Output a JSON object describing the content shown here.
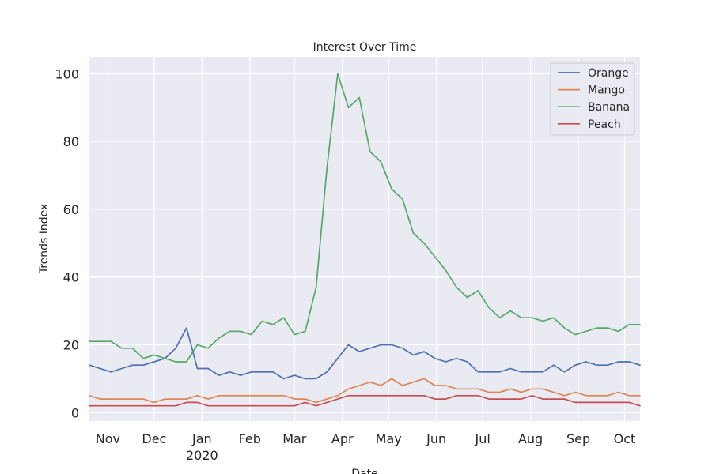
{
  "chart_data": {
    "type": "line",
    "title": "Interest Over Time",
    "xlabel": "Date",
    "ylabel": "Trends Index",
    "x_start": "2019-10-20",
    "x_step_days": 7,
    "xlim": [
      "2019-10-20",
      "2020-10-11"
    ],
    "ylim": [
      -2.5,
      105
    ],
    "yticks": [
      0,
      20,
      40,
      60,
      80,
      100
    ],
    "xticks": [
      {
        "date": "2019-11-01",
        "label": "Nov"
      },
      {
        "date": "2019-12-01",
        "label": "Dec"
      },
      {
        "date": "2020-01-01",
        "label": "Jan",
        "sublabel": "2020"
      },
      {
        "date": "2020-02-01",
        "label": "Feb"
      },
      {
        "date": "2020-03-01",
        "label": "Mar"
      },
      {
        "date": "2020-04-01",
        "label": "Apr"
      },
      {
        "date": "2020-05-01",
        "label": "May"
      },
      {
        "date": "2020-06-01",
        "label": "Jun"
      },
      {
        "date": "2020-07-01",
        "label": "Jul"
      },
      {
        "date": "2020-08-01",
        "label": "Aug"
      },
      {
        "date": "2020-09-01",
        "label": "Sep"
      },
      {
        "date": "2020-10-01",
        "label": "Oct"
      }
    ],
    "grid": true,
    "legend_position": "top-right",
    "series": [
      {
        "name": "Orange",
        "color": "#4c72b0",
        "values": [
          14,
          13,
          12,
          13,
          14,
          14,
          15,
          16,
          19,
          25,
          13,
          13,
          11,
          12,
          11,
          12,
          12,
          12,
          10,
          11,
          10,
          10,
          12,
          16,
          20,
          18,
          19,
          20,
          20,
          19,
          17,
          18,
          16,
          15,
          16,
          15,
          12,
          12,
          12,
          13,
          12,
          12,
          12,
          14,
          12,
          14,
          15,
          14,
          14,
          15,
          15,
          14
        ]
      },
      {
        "name": "Mango",
        "color": "#dd8452",
        "values": [
          5,
          4,
          4,
          4,
          4,
          4,
          3,
          4,
          4,
          4,
          5,
          4,
          5,
          5,
          5,
          5,
          5,
          5,
          5,
          4,
          4,
          3,
          4,
          5,
          7,
          8,
          9,
          8,
          10,
          8,
          9,
          10,
          8,
          8,
          7,
          7,
          7,
          6,
          6,
          7,
          6,
          7,
          7,
          6,
          5,
          6,
          5,
          5,
          5,
          6,
          5,
          5
        ]
      },
      {
        "name": "Banana",
        "color": "#55a868",
        "values": [
          21,
          21,
          21,
          19,
          19,
          16,
          17,
          16,
          15,
          15,
          20,
          19,
          22,
          24,
          24,
          23,
          27,
          26,
          28,
          23,
          24,
          37,
          72,
          100,
          90,
          93,
          77,
          74,
          66,
          63,
          53,
          50,
          46,
          42,
          37,
          34,
          36,
          31,
          28,
          30,
          28,
          28,
          27,
          28,
          25,
          23,
          24,
          25,
          25,
          24,
          26,
          26
        ]
      },
      {
        "name": "Peach",
        "color": "#c44e52",
        "values": [
          2,
          2,
          2,
          2,
          2,
          2,
          2,
          2,
          2,
          3,
          3,
          2,
          2,
          2,
          2,
          2,
          2,
          2,
          2,
          2,
          3,
          2,
          3,
          4,
          5,
          5,
          5,
          5,
          5,
          5,
          5,
          5,
          4,
          4,
          5,
          5,
          5,
          4,
          4,
          4,
          4,
          5,
          4,
          4,
          4,
          3,
          3,
          3,
          3,
          3,
          3,
          2
        ]
      }
    ]
  }
}
